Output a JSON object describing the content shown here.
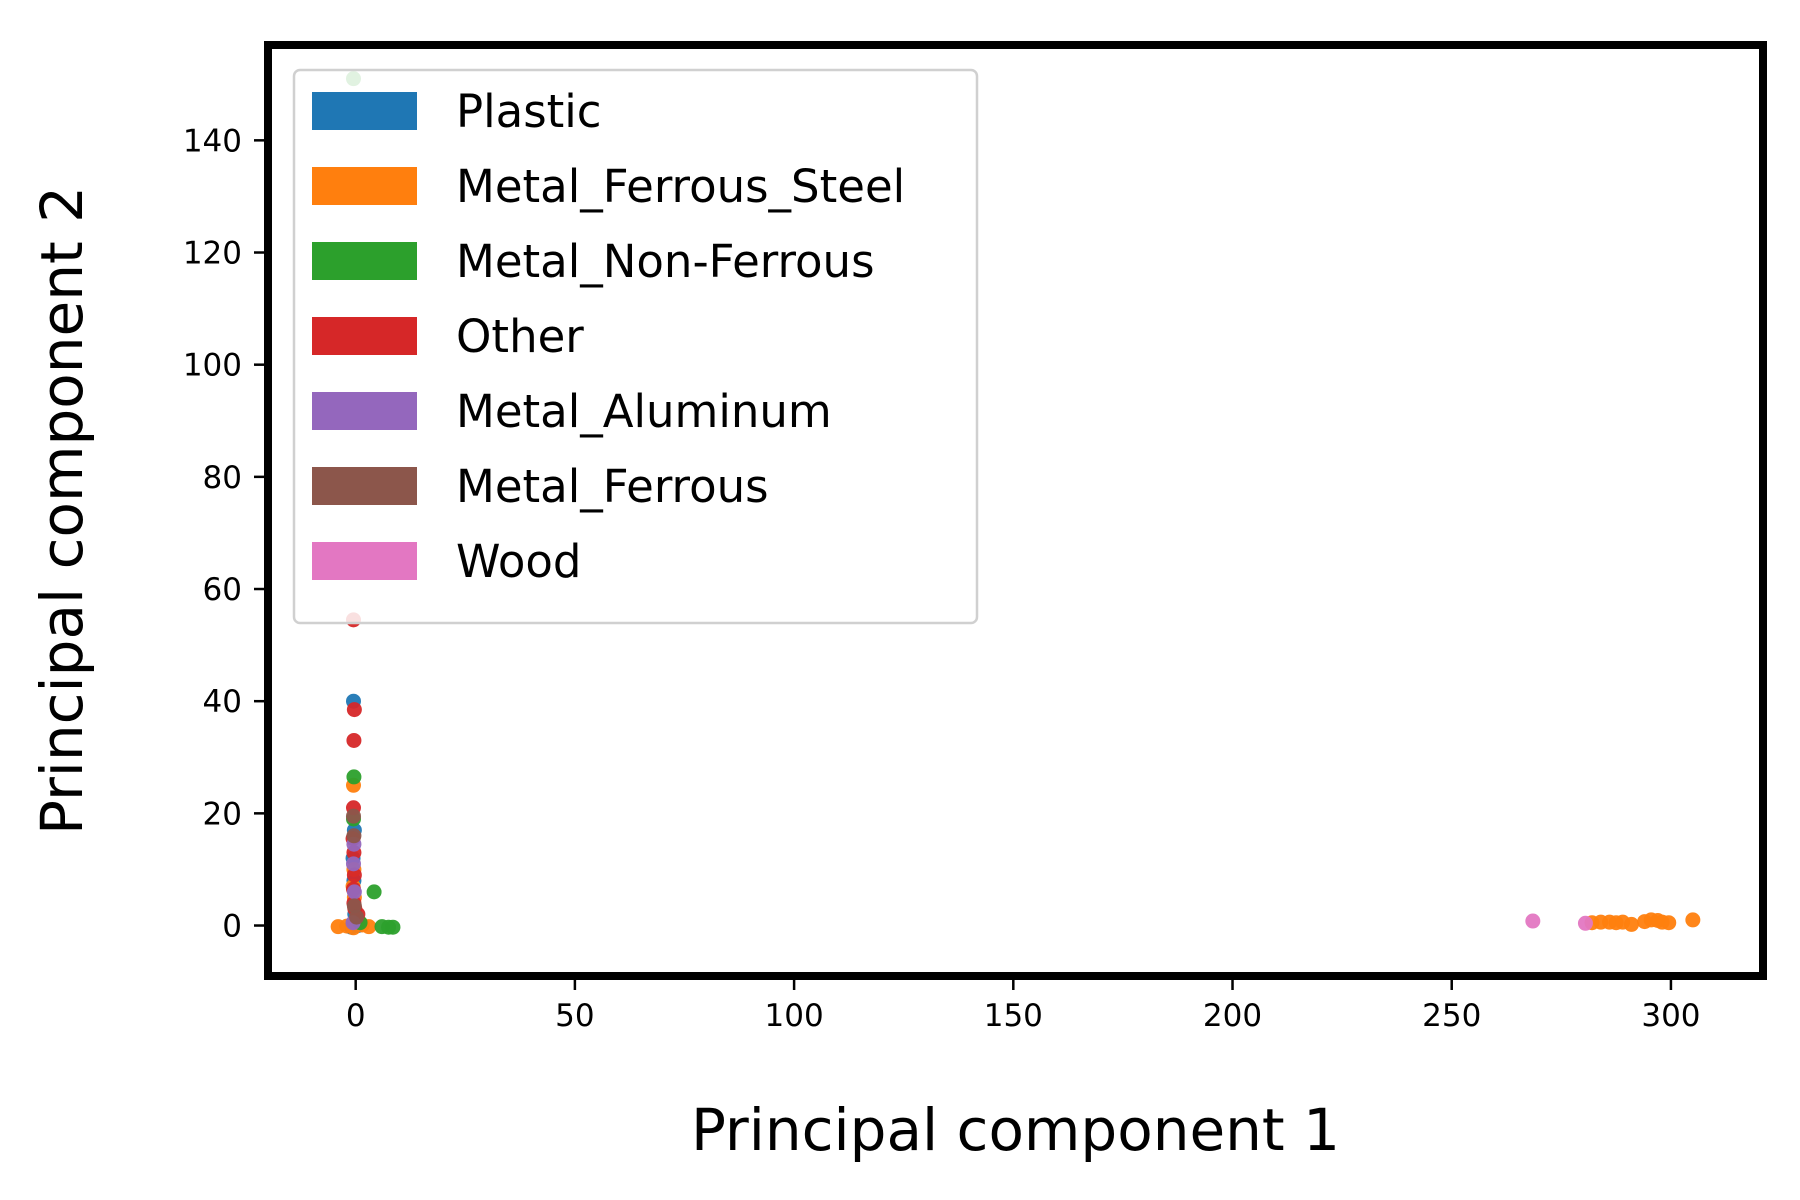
{
  "chart_data": {
    "type": "scatter",
    "title": "",
    "xlabel": "Principal component 1",
    "ylabel": "Principal component 2",
    "xlim": [
      -20,
      321
    ],
    "ylim": [
      -9,
      157
    ],
    "xticks": [
      0,
      50,
      100,
      150,
      200,
      250,
      300
    ],
    "yticks": [
      0,
      20,
      40,
      60,
      80,
      100,
      120,
      140
    ],
    "grid": false,
    "legend_position": "top-left",
    "series": [
      {
        "name": "Plastic",
        "color": "#1f77b4",
        "points": [
          [
            -0.5,
            40.0
          ],
          [
            -0.3,
            17.0
          ],
          [
            -0.6,
            12.0
          ],
          [
            -0.4,
            8.0
          ],
          [
            -0.2,
            2.0
          ],
          [
            0.0,
            1.0
          ],
          [
            0.3,
            0.5
          ],
          [
            -1.0,
            -0.3
          ],
          [
            0.5,
            0.0
          ]
        ]
      },
      {
        "name": "Metal_Ferrous_Steel",
        "color": "#ff7f0e",
        "points": [
          [
            -0.5,
            25.0
          ],
          [
            -0.4,
            10.0
          ],
          [
            -0.6,
            7.0
          ],
          [
            -0.3,
            5.0
          ],
          [
            -4.0,
            -0.2
          ],
          [
            -2.0,
            -0.1
          ],
          [
            1.5,
            0.1
          ],
          [
            3.0,
            -0.2
          ],
          [
            -0.5,
            -0.4
          ],
          [
            282.0,
            0.5
          ],
          [
            284.0,
            0.6
          ],
          [
            286.0,
            0.6
          ],
          [
            287.5,
            0.5
          ],
          [
            289.0,
            0.6
          ],
          [
            291.0,
            0.2
          ],
          [
            294.0,
            0.7
          ],
          [
            295.5,
            1.0
          ],
          [
            297.0,
            0.9
          ],
          [
            298.0,
            0.6
          ],
          [
            299.5,
            0.5
          ],
          [
            305.0,
            1.0
          ]
        ]
      },
      {
        "name": "Metal_Non-Ferrous",
        "color": "#2ca02c",
        "points": [
          [
            -0.5,
            151.0
          ],
          [
            -0.4,
            26.5
          ],
          [
            -0.5,
            19.0
          ],
          [
            4.2,
            6.0
          ],
          [
            6.0,
            -0.2
          ],
          [
            7.5,
            -0.3
          ],
          [
            8.5,
            -0.3
          ],
          [
            1.0,
            0.5
          ]
        ]
      },
      {
        "name": "Other",
        "color": "#d62728",
        "points": [
          [
            -0.5,
            54.5
          ],
          [
            -0.3,
            38.5
          ],
          [
            -0.4,
            33.0
          ],
          [
            -0.5,
            21.0
          ],
          [
            -0.6,
            15.5
          ],
          [
            -0.4,
            13.0
          ],
          [
            -0.3,
            9.0
          ],
          [
            -0.5,
            6.5
          ],
          [
            -0.4,
            4.0
          ],
          [
            0.5,
            2.0
          ],
          [
            -0.2,
            3.0
          ]
        ]
      },
      {
        "name": "Metal_Aluminum",
        "color": "#9467bd",
        "points": [
          [
            -0.4,
            14.5
          ],
          [
            -0.5,
            11.0
          ],
          [
            -0.3,
            6.0
          ],
          [
            -0.6,
            0.5
          ]
        ]
      },
      {
        "name": "Metal_Ferrous",
        "color": "#8c564b",
        "points": [
          [
            -0.5,
            19.5
          ],
          [
            -0.4,
            16.0
          ],
          [
            -0.3,
            3.5
          ],
          [
            0.2,
            1.5
          ]
        ]
      },
      {
        "name": "Wood",
        "color": "#e377c2",
        "points": [
          [
            268.5,
            0.8
          ],
          [
            280.5,
            0.4
          ]
        ]
      }
    ]
  }
}
